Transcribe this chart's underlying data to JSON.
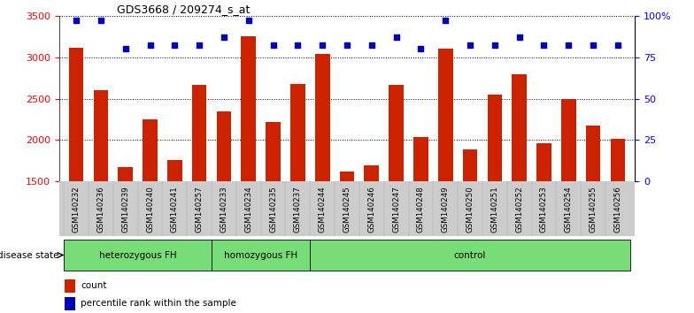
{
  "title": "GDS3668 / 209274_s_at",
  "samples": [
    "GSM140232",
    "GSM140236",
    "GSM140239",
    "GSM140240",
    "GSM140241",
    "GSM140257",
    "GSM140233",
    "GSM140234",
    "GSM140235",
    "GSM140237",
    "GSM140244",
    "GSM140245",
    "GSM140246",
    "GSM140247",
    "GSM140248",
    "GSM140249",
    "GSM140250",
    "GSM140251",
    "GSM140252",
    "GSM140253",
    "GSM140254",
    "GSM140255",
    "GSM140256"
  ],
  "counts": [
    3115,
    2600,
    1670,
    2250,
    1760,
    2670,
    2350,
    3250,
    2220,
    2680,
    3040,
    1620,
    1700,
    2670,
    2040,
    3100,
    1890,
    2550,
    2790,
    1960,
    2490,
    2180,
    2010
  ],
  "percentiles": [
    97,
    97,
    80,
    82,
    82,
    82,
    87,
    97,
    82,
    82,
    82,
    82,
    82,
    87,
    80,
    97,
    82,
    82,
    87,
    82,
    82,
    82,
    82
  ],
  "ylim_left": [
    1500,
    3500
  ],
  "ylim_right": [
    0,
    100
  ],
  "bar_color": "#CC2200",
  "dot_color": "#0000BB",
  "groups_def": [
    [
      "heterozygous FH",
      0,
      6
    ],
    [
      "homozygous FH",
      6,
      10
    ],
    [
      "control",
      10,
      23
    ]
  ],
  "group_color": "#77DD77",
  "label_bg_color": "#CCCCCC",
  "disease_state_label": "disease state",
  "legend_count": "count",
  "legend_pct": "percentile rank within the sample"
}
